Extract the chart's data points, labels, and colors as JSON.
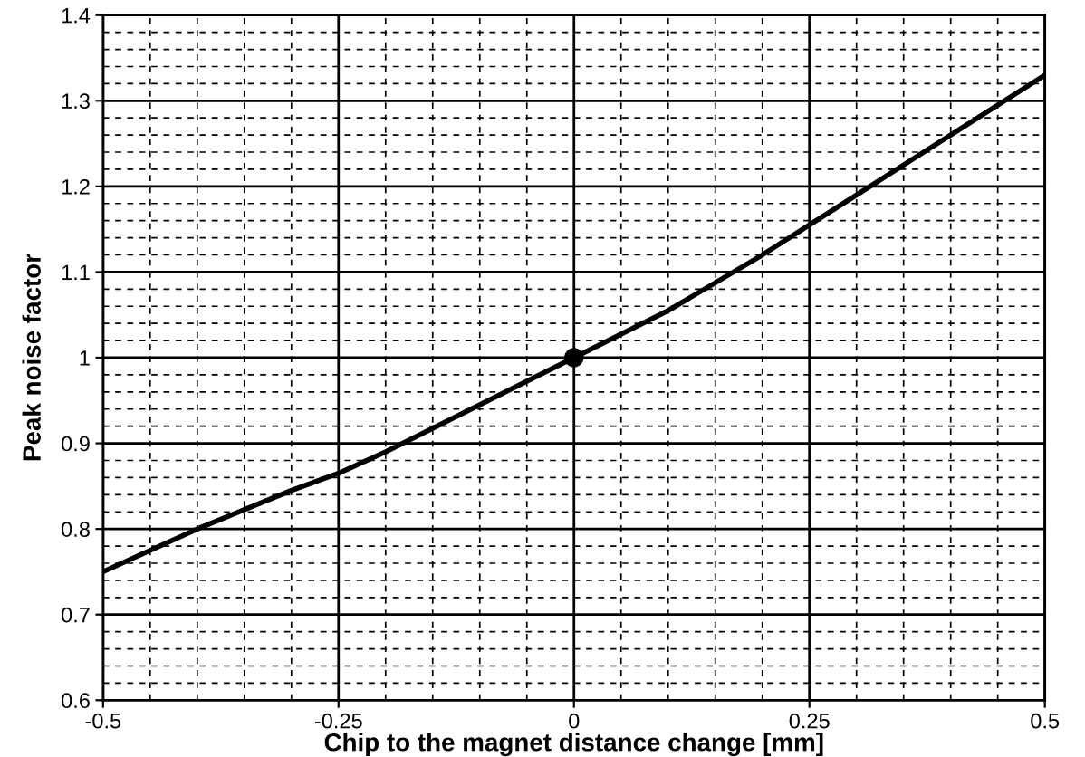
{
  "chart_data": {
    "type": "line",
    "xlabel": "Chip to the magnet distance change [mm]",
    "ylabel": "Peak noise factor",
    "xlim": [
      -0.5,
      0.5
    ],
    "ylim": [
      0.6,
      1.4
    ],
    "xticks": [
      -0.5,
      -0.25,
      0,
      0.25,
      0.5
    ],
    "yticks": [
      0.6,
      0.7,
      0.8,
      0.9,
      1,
      1.1,
      1.2,
      1.3,
      1.4
    ],
    "grid": true,
    "series": [
      {
        "color": "#000000",
        "marker": "none",
        "x": [
          -0.5,
          -0.4,
          -0.3,
          -0.25,
          -0.2,
          -0.1,
          0,
          0.1,
          0.2,
          0.25,
          0.3,
          0.4,
          0.5
        ],
        "values": [
          0.75,
          0.8,
          0.845,
          0.865,
          0.89,
          0.945,
          1,
          1.055,
          1.12,
          1.155,
          1.19,
          1.26,
          1.33
        ]
      },
      {
        "type": "scatter",
        "color": "#000000",
        "marker": "circle",
        "x": [
          0
        ],
        "values": [
          1
        ]
      }
    ]
  }
}
